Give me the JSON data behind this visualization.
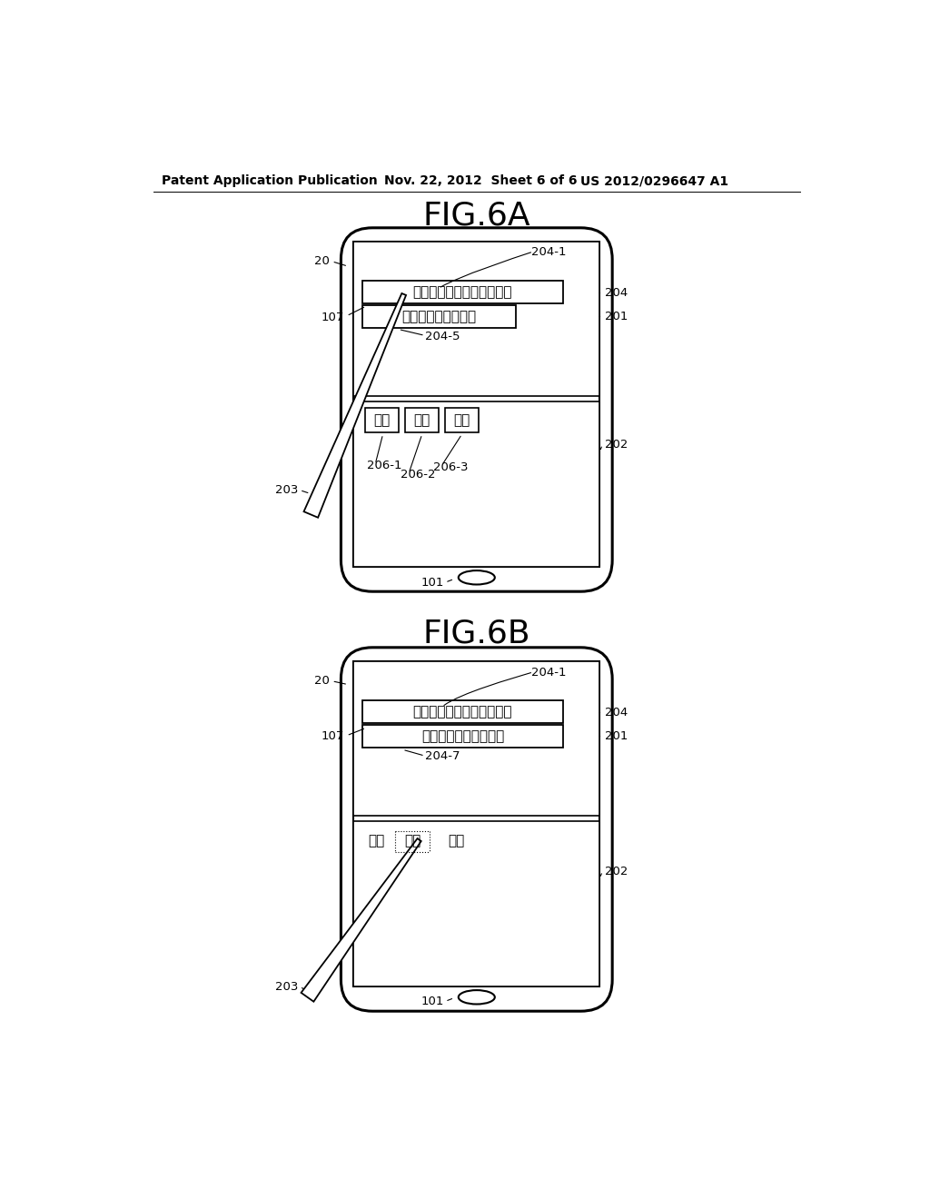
{
  "bg_color": "#ffffff",
  "line_color": "#000000",
  "text_color": "#000000",
  "header_left": "Patent Application Publication",
  "header_mid": "Nov. 22, 2012  Sheet 6 of 6",
  "header_right": "US 2012/0296647 A1",
  "fig6a_title": "FIG.6A",
  "fig6b_title": "FIG.6B",
  "jp_1a": "ぎょうはいいてんきですね",
  "jp_1b": "行はいい天気ですね",
  "jp_c1": "ぎょ",
  "jp_c2": "きょ",
  "jp_c3": "ぴょ",
  "jp_2a": "ぎょうはいいてんきですね",
  "jp_2b": "今日はいい天気ですね",
  "jp_2c1": "ぎょ",
  "jp_2c2": "きょ",
  "jp_2c3": "ぴょ",
  "lbl_20a": "20",
  "lbl_107a": "107",
  "lbl_2041a": "204-1",
  "lbl_204a": "204",
  "lbl_201a": "201",
  "lbl_2045": "204-5",
  "lbl_203a": "203",
  "lbl_202a": "202",
  "lbl_2061": "206-1",
  "lbl_2062": "206-2",
  "lbl_2063": "206-3",
  "lbl_101a": "101",
  "lbl_20b": "20",
  "lbl_107b": "107",
  "lbl_2041b": "204-1",
  "lbl_204b": "204",
  "lbl_201b": "201",
  "lbl_2047": "204-7",
  "lbl_203b": "203",
  "lbl_202b": "202",
  "lbl_101b": "101"
}
